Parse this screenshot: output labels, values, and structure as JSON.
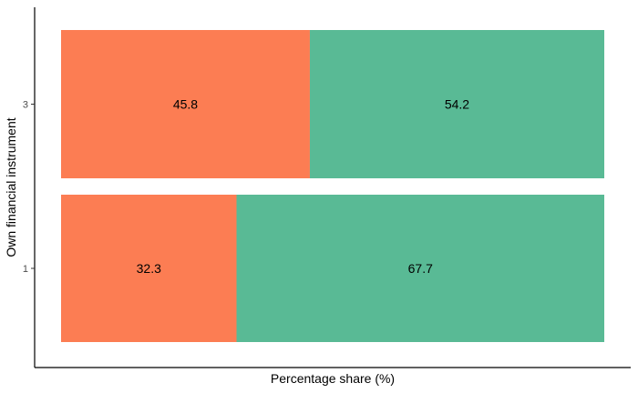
{
  "chart_data": {
    "type": "bar",
    "orientation": "horizontal",
    "stacked": true,
    "title": "",
    "xlabel": "Percentage share (%)",
    "ylabel": "Own financial instrument",
    "categories": [
      "1",
      "3"
    ],
    "xlim": [
      0,
      100
    ],
    "grid": false,
    "legend": "none",
    "series": [
      {
        "values": [
          32.3,
          45.8
        ],
        "color": "#FC7D53"
      },
      {
        "values": [
          67.7,
          54.2
        ],
        "color": "#59BA95"
      }
    ]
  }
}
